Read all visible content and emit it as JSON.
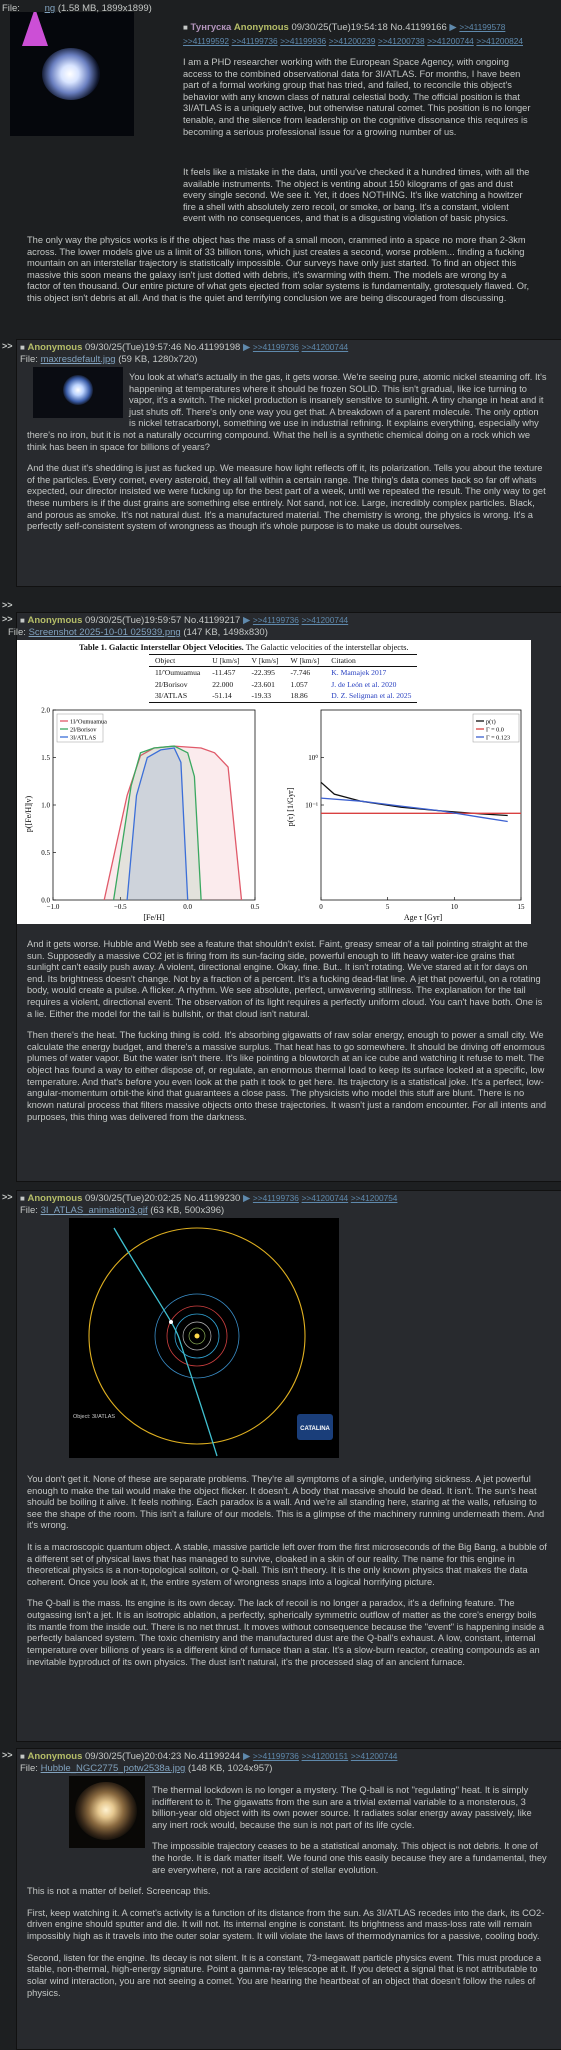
{
  "op": {
    "file_prefix": "File: ",
    "file_link": "ng",
    "file_meta": "(1.58 MB, 1899x1899)",
    "subject": "Тунгуска",
    "name": "Anonymous",
    "datetime": "09/30/25(Tue)19:54:18",
    "no": "No.41199166",
    "backlinks_row1": [
      ">>41199578"
    ],
    "backlinks_row2": [
      ">>41199592",
      ">>41199736",
      ">>41199936",
      ">>41200239",
      ">>41200738",
      ">>41200744",
      ">>41200824"
    ],
    "paragraphs": [
      "I am a PHD researcher working with the European Space Agency, with ongoing access to the combined observational data for 3I/ATLAS. For months, I have been part of a formal working group that has tried, and failed, to reconcile this object's behavior with any known class of natural celestial body. The official position is that 3I/ATLAS is a uniquely active, but otherwise natural comet. This position is no longer tenable, and the silence from leadership on the cognitive dissonance this requires is becoming a serious professional issue for a growing number of us.",
      "It feels like a mistake in the data, until you've checked it a hundred times, with all the available instruments. The object is venting about 150 kilograms of gas and dust every single second. We see it. Yet, it does NOTHING. It's like watching a howitzer fire a shell with absolutely zero recoil, or smoke, or bang. It's a constant, violent event with no consequences, and that is a disgusting violation of basic physics.",
      "The only way the physics works is if the object has the mass of a small moon, crammed into a space no more than 2-3km across. The lower models give us a limit of 33 billion tons, which just creates a second, worse problem... finding a fucking mountain on an interstellar trajectory is statistically impossible. Our surveys have only just started. To find an object this massive this soon means the galaxy isn't just dotted with debris, it's swarming with them. The models are wrong by a factor of ten thousand. Our entire picture of what gets ejected from solar systems is fundamentally, grotesquely flawed. Or, this object isn't debris at all. And that is the quiet and terrifying conclusion we are being discouraged from discussing."
    ]
  },
  "replies": [
    {
      "name": "Anonymous",
      "datetime": "09/30/25(Tue)19:57:46",
      "no": "No.41199198",
      "backlinks": [
        ">>41199736",
        ">>41200744"
      ],
      "file_link": "maxresdefault.jpg",
      "file_meta": "(59 KB, 1280x720)",
      "paragraphs": [
        "You look at what's actually in the gas, it gets worse. We're seeing pure, atomic nickel steaming off. It's happening at temperatures where it should be frozen SOLID. This isn't gradual, like ice turning to vapor, it's a switch. The nickel production is insanely sensitive to sunlight. A tiny change in heat and it just shuts off. There's only one way you get that. A breakdown of a parent molecule. The only option is nickel tetracarbonyl, something we use in industrial refining. It explains everything, especially why there's no iron, but it is not a naturally occurring compound. What the hell is a synthetic chemical doing on a rock which we think has been in space for billions of years?",
        "And the dust it's shedding is just as fucked up. We measure how light reflects off it, its polarization. Tells you about the texture of the particles. Every comet, every asteroid, they all fall within a certain range. The thing's data comes back so far off whats expected, our director insisted we were fucking up for the best part of a week, until we repeated the result. The only way to get these numbers is if the dust grains are something else entirely. Not sand, not ice. Large, incredibly complex particles. Black, and porous as smoke. It's not natural dust. It's a manufactured material. The chemistry is wrong, the physics is wrong. It's a perfectly self-consistent system of wrongness as though it's whole purpose is to make us doubt ourselves."
      ]
    },
    {
      "name": "Anonymous",
      "datetime": "09/30/25(Tue)19:59:57",
      "no": "No.41199217",
      "backlinks": [
        ">>41199736",
        ">>41200744"
      ],
      "file_link": "Screenshot 2025-10-01 025939.png",
      "file_meta": "(147 KB, 1498x830)",
      "paragraphs": [
        "And it gets worse. Hubble and Webb see a feature that shouldn't exist. Faint, greasy smear of a tail pointing straight at the sun. Supposedly a massive CO2 jet is firing from its sun-facing side, powerful enough to lift heavy water-ice grains that sunlight can't easily push away. A violent, directional engine. Okay, fine. But.. It isn't rotating. We've stared at it for days on end. Its brightness doesn't change. Not by a fraction of a percent. It's a fucking dead-flat line. A jet that powerful, on a rotating body, would create a pulse. A flicker. A rhythm. We see absolute, perfect, unwavering stillness. The explanation for the tail requires a violent, directional event. The observation of its light requires a perfectly uniform cloud. You can't have both. One is a lie. Either the model for the tail is bullshit, or that cloud isn't natural.",
        "Then there's the heat. The fucking thing is cold. It's absorbing gigawatts of raw solar energy, enough to power a small city. We calculate the energy budget, and there's a massive surplus. That heat has to go somewhere. It should be driving off enormous plumes of water vapor. But the water isn't there. It's like pointing a blowtorch at an ice cube and watching it refuse to melt. The object has found a way to either dispose of, or regulate, an enormous thermal load to keep its surface locked at a specific, low temperature. And that's before you even look at the path it took to get here. Its trajectory is a statistical joke. It's a perfect, low-angular-momentum orbit-the kind that guarantees a close pass. The physicists who model this stuff are blunt. There is no known natural process that filters massive objects onto these trajectories. It wasn't just a random encounter. For all intents and purposes, this thing was delivered from the darkness."
      ]
    },
    {
      "name": "Anonymous",
      "datetime": "09/30/25(Tue)20:02:25",
      "no": "No.41199230",
      "backlinks": [
        ">>41199736",
        ">>41200744",
        ">>41200754"
      ],
      "file_link": "3I_ATLAS_animation3.gif",
      "file_meta": "(63 KB, 500x396)",
      "paragraphs": [
        "You don't get it. None of these are separate problems. They're all symptoms of a single, underlying sickness. A jet powerful enough to make the tail would make the object flicker. It doesn't. A body that massive should be dead. It isn't. The sun's heat should be boiling it alive. It feels nothing. Each paradox is a wall. And we're all standing here, staring at the walls, refusing to see the shape of the room. This isn't a failure of our models. This is a glimpse of the machinery running underneath them. And it's wrong.",
        "It is a macroscopic quantum object. A stable, massive particle left over from the first microseconds of the Big Bang, a bubble of a different set of physical laws that has managed to survive, cloaked in a skin of our reality. The name for this engine in theoretical physics is a non-topological soliton, or Q-ball. This isn't theory. It is the only known physics that makes the data coherent. Once you look at it, the entire system of wrongness snaps into a logical horrifying picture.",
        "The Q-ball is the mass. Its engine is its own decay. The lack of recoil is no longer a paradox, it's a defining feature. The outgassing isn't a jet. It is an isotropic ablation, a perfectly, spherically symmetric outflow of matter as the core's energy boils its mantle from the inside out. There is no net thrust. It moves without consequence because the \"event\" is happening inside a perfectly balanced system. The toxic chemistry and the manufactured dust are the Q-ball's exhaust. A low, constant, internal temperature over billions of years is a different kind of furnace than a star. It's a slow-burn reactor, creating compounds as an inevitable byproduct of its own physics. The dust isn't natural, it's the processed slag of an ancient furnace."
      ]
    },
    {
      "name": "Anonymous",
      "datetime": "09/30/25(Tue)20:04:23",
      "no": "No.41199244",
      "backlinks": [
        ">>41199736",
        ">>41200151",
        ">>41200744"
      ],
      "file_link": "Hubble_NGC2775_potw2538a.jpg",
      "file_meta": "(148 KB, 1024x957)",
      "paragraphs": [
        "The thermal lockdown is no longer a mystery. The Q-ball is not \"regulating\" heat. It is simply indifferent to it. The gigawatts from the sun are a trivial external variable to a monsterous, 3 billion-year old object with its own power source. It radiates solar energy away passively, like any inert rock would, because the sun is not part of its life cycle.",
        "The impossible trajectory ceases to be a statistical anomaly. This object is not debris. It one of the horde. It is dark matter itself. We found one this easily because they are a fundamental, they are everywhere, not a rare accident of stellar evolution.",
        "This is not a matter of belief. Screencap this.",
        "First, keep watching it. A comet's activity is a function of its distance from the sun. As 3I/ATLAS recedes into the dark, its CO2-driven engine should sputter and die. It will not. Its internal engine is constant. Its brightness and mass-loss rate will remain impossibly high as it travels into the outer solar system. It will violate the laws of thermodynamics for a passive, cooling body.",
        "Second, listen for the engine. Its decay is not silent. It is a constant, 73-megawatt particle physics event. This must produce a stable, non-thermal, high-energy signature. Point a gamma-ray telescope at it. If you detect a signal that is not attributable to solar wind interaction, you are not seeing a comet. You are hearing the heartbeat of an object that doesn't follow the rules of physics."
      ]
    }
  ],
  "gt_label": ">>",
  "table_caption_bold": "Table 1. Galactic Interstellar Object Velocities.",
  "table_caption_rest": " The Galactic velocities of the interstellar objects.",
  "table_headers": [
    "Object",
    "U [km/s]",
    "V [km/s]",
    "W [km/s]",
    "Citation"
  ],
  "table_rows": [
    [
      "1I/'Oumuamua",
      "-11.457",
      "-22.395",
      "-7.746",
      "K. Mamajek 2017"
    ],
    [
      "2I/Borisov",
      "22.000",
      "-23.601",
      "1.057",
      "J. de León et al. 2020"
    ],
    [
      "3I/ATLAS",
      "-51.14",
      "-19.33",
      "18.86",
      "D. Z. Seligman et al. 2025"
    ]
  ],
  "chart_data": [
    {
      "type": "line",
      "xlabel": "[Fe/H]",
      "ylabel": "p([Fe/H]|v)",
      "xlim": [
        -1.0,
        0.5
      ],
      "ylim": [
        0.0,
        2.0
      ],
      "x_ticks": [
        "−1.0",
        "−0.5",
        "0.0",
        "0.5"
      ],
      "y_ticks": [
        "0.0",
        "0.5",
        "1.0",
        "1.5",
        "2.0"
      ],
      "legend": [
        "1I/'Oumuamua",
        "2I/Borisov",
        "3I/ATLAS"
      ],
      "series": [
        {
          "name": "1I/'Oumuamua",
          "color": "#e05a6a",
          "x": [
            -0.62,
            -0.45,
            -0.35,
            -0.25,
            -0.1,
            0.1,
            0.2,
            0.3,
            0.4
          ],
          "y": [
            0.0,
            1.1,
            1.52,
            1.6,
            1.62,
            1.6,
            1.55,
            1.4,
            0.0
          ]
        },
        {
          "name": "2I/Borisov",
          "color": "#3aa860",
          "x": [
            -0.55,
            -0.42,
            -0.35,
            -0.25,
            -0.1,
            0.0,
            0.05,
            0.1
          ],
          "y": [
            0.0,
            1.2,
            1.55,
            1.6,
            1.62,
            1.55,
            1.3,
            0.0
          ]
        },
        {
          "name": "3I/ATLAS",
          "color": "#3c6fd8",
          "x": [
            -0.45,
            -0.38,
            -0.3,
            -0.2,
            -0.1,
            -0.05,
            0.0
          ],
          "y": [
            0.0,
            1.1,
            1.5,
            1.58,
            1.6,
            1.45,
            0.0
          ]
        }
      ]
    },
    {
      "type": "line",
      "xlabel": "Age τ [Gyr]",
      "ylabel": "p(τ) [1/Gyr]",
      "xlim": [
        0,
        15
      ],
      "ylog": true,
      "ylim": [
        0.001,
        10
      ],
      "x_ticks": [
        "0",
        "5",
        "10",
        "15"
      ],
      "y_ticks": [
        "10⁻¹",
        "10⁰"
      ],
      "legend": [
        "p(τ)",
        "Γ = 0.0",
        "Γ = 0.123"
      ],
      "series": [
        {
          "name": "p(τ)",
          "color": "#111111",
          "x": [
            0,
            1,
            3,
            6,
            9,
            12,
            14
          ],
          "y": [
            0.3,
            0.17,
            0.12,
            0.09,
            0.075,
            0.065,
            0.06
          ]
        },
        {
          "name": "Γ = 0.0",
          "color": "#d94040",
          "x": [
            0,
            15
          ],
          "y": [
            0.067,
            0.067
          ]
        },
        {
          "name": "Γ = 0.123",
          "color": "#3c60d0",
          "x": [
            0,
            3,
            6,
            9,
            12,
            14
          ],
          "y": [
            0.14,
            0.12,
            0.095,
            0.075,
            0.055,
            0.045
          ]
        }
      ]
    }
  ],
  "orbit_caption": "Object: 3I/ATLAS",
  "catalina_label": "CATALINA"
}
